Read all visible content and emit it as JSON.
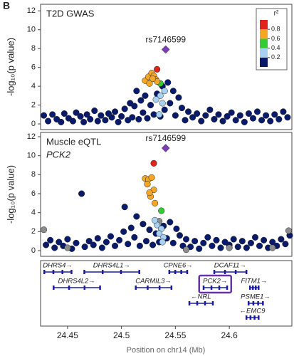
{
  "chart_data": {
    "type": "locuszoom",
    "panel_letter": "B",
    "xlabel": "Position on chr14 (Mb)",
    "xlim": [
      24.425,
      24.658
    ],
    "xticks": [
      24.45,
      24.5,
      24.55,
      24.6
    ],
    "legend": {
      "title": "r²",
      "lim": [
        0,
        1
      ],
      "ticks": [
        0.2,
        0.4,
        0.6,
        0.8
      ],
      "colors": [
        "#0a1a6b",
        "#a8d0f0",
        "#33cc33",
        "#f5a623",
        "#e0241b"
      ],
      "corner": "top-right"
    },
    "panels": [
      {
        "title": "T2D GWAS",
        "ylabel": "-log₁₀(p value)",
        "ylim": [
          -0.6,
          12.7
        ],
        "yticks": [
          0,
          2,
          4,
          6,
          8,
          10,
          12
        ],
        "lead": {
          "label": "rs7146599",
          "x": 24.541,
          "value": 7.9,
          "color": "#7b3fb5"
        },
        "series": [
          {
            "color": "#0a1a6b",
            "x": [
              24.428,
              24.432,
              24.436,
              24.44,
              24.444,
              24.447,
              24.451,
              24.455,
              24.458,
              24.462,
              24.465,
              24.468,
              24.471,
              24.475,
              24.478,
              24.481,
              24.485,
              24.488,
              24.491,
              24.494,
              24.497,
              24.5,
              24.503,
              24.506,
              24.508,
              24.51,
              24.512,
              24.514,
              24.516,
              24.518,
              24.52,
              24.522,
              24.524,
              24.527,
              24.53,
              24.533,
              24.536,
              24.538,
              24.54,
              24.543,
              24.545,
              24.548,
              24.55,
              24.553,
              24.556,
              24.559,
              24.562,
              24.566,
              24.57,
              24.574,
              24.578,
              24.582,
              24.586,
              24.59,
              24.594,
              24.598,
              24.602,
              24.606,
              24.61,
              24.614,
              24.618,
              24.622,
              24.626,
              24.63,
              24.634,
              24.638,
              24.642,
              24.646,
              24.65,
              24.654
            ],
            "values": [
              0.9,
              0.3,
              1.0,
              0.5,
              0.2,
              1.1,
              0.6,
              0.3,
              1.2,
              0.8,
              0.2,
              1.0,
              0.5,
              1.4,
              0.3,
              0.9,
              0.4,
              1.1,
              0.7,
              1.3,
              0.2,
              0.8,
              1.6,
              0.4,
              2.2,
              0.7,
              1.9,
              3.5,
              0.5,
              2.5,
              1.2,
              3.0,
              0.6,
              2.0,
              1.0,
              3.2,
              0.8,
              4.0,
              1.5,
              4.4,
              2.2,
              3.5,
              0.9,
              2.8,
              1.7,
              0.4,
              1.3,
              0.7,
              1.1,
              0.3,
              0.9,
              1.5,
              0.5,
              1.0,
              0.3,
              0.8,
              1.2,
              0.4,
              0.9,
              0.2,
              1.1,
              0.6,
              1.3,
              0.4,
              0.9,
              0.3,
              1.0,
              0.5,
              1.3,
              0.7
            ]
          },
          {
            "color": "#a8d0f0",
            "x": [
              24.536,
              24.54,
              24.532,
              24.538,
              24.535
            ],
            "values": [
              3.0,
              3.5,
              2.6,
              2.2,
              1.0
            ]
          },
          {
            "color": "#33cc33",
            "x": [
              24.536
            ],
            "values": [
              4.3
            ]
          },
          {
            "color": "#f5a623",
            "x": [
              24.522,
              24.525,
              24.528,
              24.53,
              24.532,
              24.526,
              24.533,
              24.529
            ],
            "values": [
              4.6,
              5.0,
              5.4,
              5.1,
              4.7,
              4.3,
              4.5,
              4.8
            ]
          },
          {
            "color": "#e0241b",
            "x": [
              24.533
            ],
            "values": [
              5.8
            ]
          }
        ]
      },
      {
        "title": "Muscle eQTL",
        "subtitle": "PCK2",
        "ylabel": "-log₁₀(p value)",
        "ylim": [
          -0.6,
          12.45
        ],
        "yticks": [
          0,
          2,
          4,
          6,
          8,
          10,
          12
        ],
        "lead": {
          "label": "rs7146599",
          "x": 24.541,
          "value": 10.8,
          "color": "#7b3fb5"
        },
        "series": [
          {
            "color": "#0a1a6b",
            "x": [
              24.43,
              24.434,
              24.438,
              24.442,
              24.446,
              24.45,
              24.454,
              24.458,
              24.463,
              24.466,
              24.47,
              24.474,
              24.478,
              24.482,
              24.486,
              24.49,
              24.494,
              24.498,
              24.502,
              24.503,
              24.506,
              24.509,
              24.512,
              24.514,
              24.517,
              24.52,
              24.523,
              24.526,
              24.529,
              24.532,
              24.535,
              24.539,
              24.542,
              24.545,
              24.548,
              24.551,
              24.554,
              24.557,
              24.56,
              24.564,
              24.568,
              24.572,
              24.576,
              24.58,
              24.584,
              24.588,
              24.592,
              24.596,
              24.6,
              24.604,
              24.608,
              24.612,
              24.616,
              24.62,
              24.624,
              24.628,
              24.632,
              24.636,
              24.64,
              24.644,
              24.648,
              24.652,
              24.656
            ],
            "values": [
              0.6,
              1.1,
              0.3,
              0.9,
              0.5,
              1.2,
              0.2,
              0.8,
              6.0,
              0.4,
              1.0,
              0.6,
              1.3,
              0.3,
              0.9,
              1.5,
              0.5,
              1.1,
              2.0,
              4.6,
              0.7,
              2.4,
              1.4,
              3.6,
              0.5,
              2.8,
              1.0,
              2.2,
              0.6,
              1.8,
              0.9,
              2.6,
              1.3,
              3.0,
              0.8,
              2.3,
              1.6,
              0.5,
              1.2,
              0.4,
              1.0,
              0.2,
              0.8,
              1.4,
              0.5,
              1.1,
              0.3,
              0.9,
              0.6,
              1.2,
              0.4,
              1.0,
              0.3,
              0.8,
              1.4,
              0.5,
              1.1,
              0.3,
              0.9,
              0.5,
              1.2,
              0.7,
              1.6
            ]
          },
          {
            "color": "#8c8c8c",
            "x": [
              24.428,
              24.45,
              24.535,
              24.64,
              24.655,
              24.6,
              24.56
            ],
            "values": [
              2.2,
              0.3,
              3.1,
              0.3,
              2.1,
              0.3,
              0.1
            ]
          },
          {
            "color": "#a8d0f0",
            "x": [
              24.533,
              24.537,
              24.535,
              24.539,
              24.531,
              24.538
            ],
            "values": [
              2.7,
              2.3,
              1.8,
              1.4,
              3.2,
              0.9
            ]
          },
          {
            "color": "#33cc33",
            "x": [
              24.537
            ],
            "values": [
              4.2
            ]
          },
          {
            "color": "#f5a623",
            "x": [
              24.522,
              24.525,
              24.528,
              24.524,
              24.53,
              24.527,
              24.531,
              24.526
            ],
            "values": [
              7.6,
              7.5,
              7.7,
              7.0,
              6.4,
              5.7,
              5.0,
              6.1
            ]
          },
          {
            "color": "#e0241b",
            "x": [
              24.53
            ],
            "values": [
              9.2
            ]
          }
        ]
      }
    ],
    "gene_rows": [
      [
        {
          "name": "DHRS4→",
          "start": 24.4283,
          "end": 24.4535
        },
        {
          "name": "DHRS4L1→",
          "start": 24.4654,
          "end": 24.5164
        },
        {
          "name": "CPNE6→",
          "start": 24.5442,
          "end": 24.5608
        },
        {
          "name": "DCAF11→",
          "start": 24.5859,
          "end": 24.6157
        }
      ],
      [
        {
          "name": "DHRS4L2→",
          "start": 24.4369,
          "end": 24.48
        },
        {
          "name": "CARMIL3→",
          "start": 24.5131,
          "end": 24.5462
        },
        {
          "name": "PCK2→",
          "start": 24.576,
          "end": 24.5978,
          "highlight": true
        },
        {
          "name": "FITM1→",
          "start": 24.619,
          "end": 24.627
        }
      ],
      [
        {
          "name": "←NRL",
          "start": 24.5628,
          "end": 24.5846
        },
        {
          "name": "PSME1→",
          "start": 24.6177,
          "end": 24.631
        }
      ],
      [
        {
          "name": "←EMC9",
          "start": 24.6157,
          "end": 24.627
        }
      ]
    ]
  }
}
